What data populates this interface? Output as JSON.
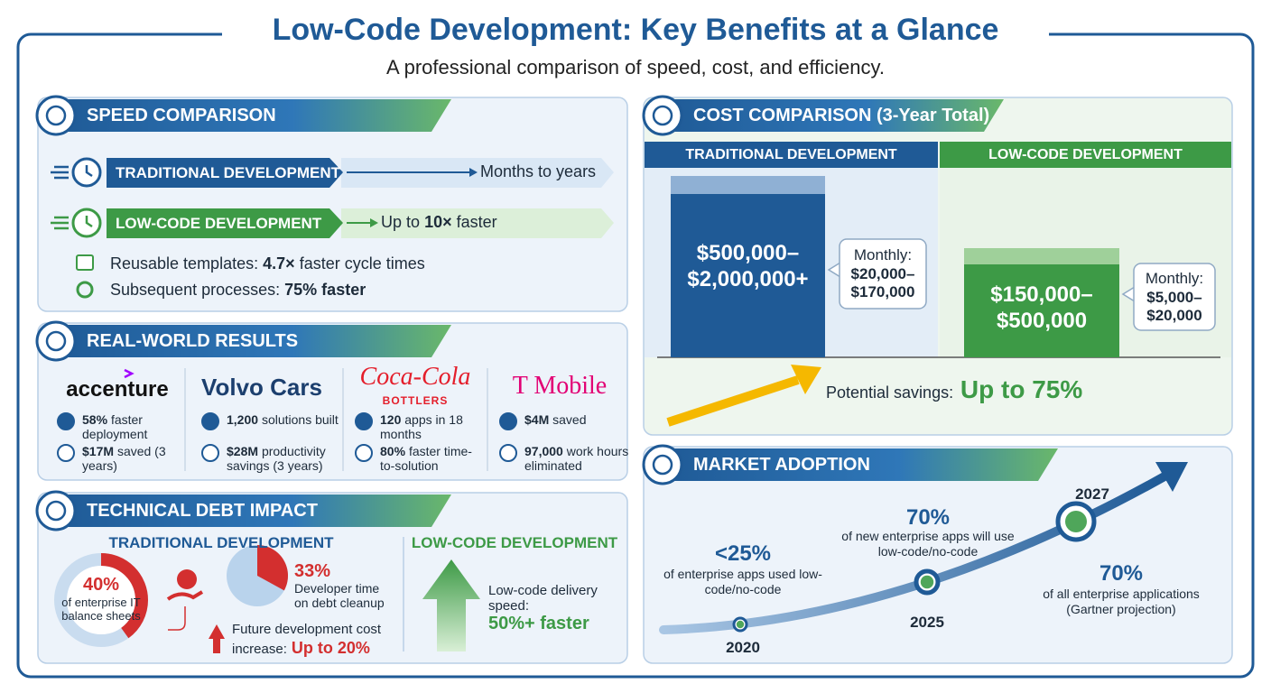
{
  "header": {
    "title": "Low-Code Development: Key Benefits at a Glance",
    "subtitle": "A professional comparison of speed, cost, and efficiency."
  },
  "speed": {
    "heading": "SPEED COMPARISON",
    "rows": [
      {
        "label": "TRADITIONAL DEVELOPMENT",
        "result": {
          "lead": "Months to years"
        }
      },
      {
        "label": "LOW-CODE DEVELOPMENT",
        "result": {
          "lead": "Up to",
          "bold": "10×",
          "tail": "faster"
        }
      }
    ],
    "notes": [
      {
        "lead": "Reusable templates:",
        "bold": "4.7×",
        "tail": "faster cycle times"
      },
      {
        "lead": "Subsequent processes:",
        "bold": "75% faster"
      }
    ]
  },
  "results": {
    "heading": "REAL-WORLD RESULTS",
    "companies": [
      {
        "logo": "accenture",
        "stats": [
          {
            "bold": "58%",
            "text": "faster deployment"
          },
          {
            "bold": "$17M",
            "text": "saved (3 years)"
          }
        ]
      },
      {
        "logo": "Volvo Cars",
        "stats": [
          {
            "bold": "1,200",
            "text": "solutions built"
          },
          {
            "bold": "$28M",
            "text": "productivity savings (3 years)"
          }
        ]
      },
      {
        "logo": "Coca-Cola",
        "logo_sub": "BOTTLERS",
        "stats": [
          {
            "bold": "120",
            "text": "apps in 18 months"
          },
          {
            "bold": "80%",
            "text": "faster time-to-solution"
          }
        ]
      },
      {
        "logo": "T Mobile",
        "stats": [
          {
            "bold": "$4M",
            "text": "saved"
          },
          {
            "bold": "97,000",
            "text": "work hours eliminated"
          }
        ]
      }
    ]
  },
  "debt": {
    "heading": "TECHNICAL DEBT IMPACT",
    "traditional": {
      "heading": "TRADITIONAL DEVELOPMENT",
      "donut": {
        "value": 40,
        "label": "40%",
        "caption": "of enterprise IT balance sheets"
      },
      "pie": {
        "value": 33,
        "label": "33%",
        "caption": "Developer time on debt cleanup"
      },
      "cost": {
        "lead": "Future development cost increase:",
        "bold": "Up to 20%"
      }
    },
    "lowcode": {
      "heading": "LOW-CODE DEVELOPMENT",
      "lead": "Low-code delivery speed:",
      "bold": "50%+ faster"
    }
  },
  "cost": {
    "heading": "COST COMPARISON (3-Year Total)",
    "columns": [
      {
        "title": "TRADITIONAL DEVELOPMENT",
        "total": "$500,000–$2,000,000+",
        "monthly_label": "Monthly:",
        "monthly": "$20,000–$170,000"
      },
      {
        "title": "LOW-CODE DEVELOPMENT",
        "total": "$150,000–$500,000",
        "monthly_label": "Monthly:",
        "monthly": "$5,000–$20,000"
      }
    ],
    "savings": {
      "lead": "Potential savings:",
      "bold": "Up to 75%"
    }
  },
  "market": {
    "heading": "MARKET ADOPTION",
    "milestones": [
      {
        "year": "2020",
        "value": "<25%",
        "caption": "of enterprise apps used low-code/no-code"
      },
      {
        "year": "2025",
        "value": "70%",
        "caption": "of new enterprise apps will use low-code/no-code"
      },
      {
        "year": "2027",
        "value": "70%",
        "caption": "of all enterprise applications (Gartner projection)"
      }
    ]
  }
}
